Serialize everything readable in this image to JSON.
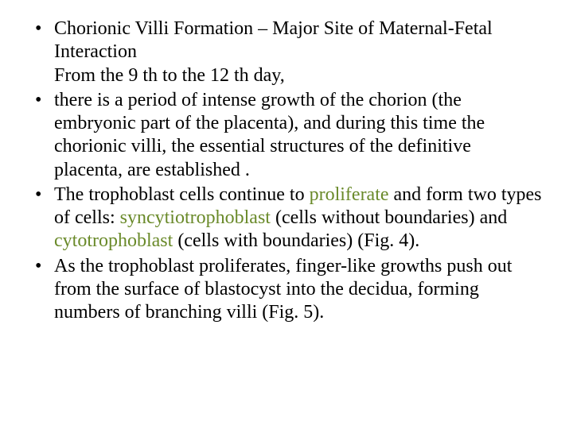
{
  "highlight_color": "#6a8a2a",
  "text_color": "#000000",
  "background_color": "#ffffff",
  "font_family": "Times New Roman",
  "font_size_pt": 24,
  "bullets": [
    {
      "lines": [
        "Chorionic Villi Formation – Major Site of Maternal-Fetal Interaction",
        "From the 9 th to the 12 th day,"
      ]
    },
    {
      "lines": [
        "there is a period of intense growth of the chorion (the embryonic part of the placenta), and during this time the chorionic villi, the essential structures of the definitive placenta, are established ."
      ]
    },
    {
      "prefix_space": true,
      "segments": [
        {
          "t": "The trophoblast cells continue to "
        },
        {
          "t": "proliferate",
          "hl": true
        },
        {
          "t": " and form two types of cells: "
        },
        {
          "t": "syncytiotrophoblast",
          "hl": true
        },
        {
          "t": " (cells without boundaries) and "
        },
        {
          "t": "cytotrophoblast",
          "hl": true
        },
        {
          "t": " (cells with boundaries) (Fig. 4)."
        }
      ]
    },
    {
      "lines": [
        "As the trophoblast proliferates, finger-like growths push out from the surface of blastocyst into the decidua, forming numbers of branching villi (Fig. 5)."
      ]
    }
  ]
}
